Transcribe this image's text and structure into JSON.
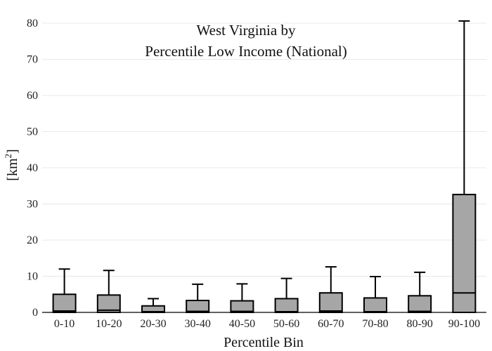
{
  "chart_data": {
    "type": "box",
    "title_lines": [
      "West Virginia  by",
      "Percentile Low Income (National)"
    ],
    "xlabel": "Percentile Bin",
    "ylabel": "[km",
    "ylabel_superscript": "2",
    "ylabel_close": "]",
    "ylim": [
      0,
      80
    ],
    "y_ticks": [
      0,
      10,
      20,
      30,
      40,
      50,
      60,
      70,
      80
    ],
    "grid": true,
    "legend": "none",
    "box_fill": "#a6a6a6",
    "box_stroke": "#000000",
    "grid_color": "#e8e8e8",
    "categories": [
      "0-10",
      "10-20",
      "20-30",
      "30-40",
      "40-50",
      "50-60",
      "60-70",
      "70-80",
      "80-90",
      "90-100"
    ],
    "boxes": [
      {
        "category": "0-10",
        "lower_whisker": 0,
        "q1": 0,
        "median": 0.4,
        "q3": 5.0,
        "upper_whisker": 12.0
      },
      {
        "category": "10-20",
        "lower_whisker": 0,
        "q1": 0,
        "median": 0.6,
        "q3": 4.8,
        "upper_whisker": 11.6
      },
      {
        "category": "20-30",
        "lower_whisker": 0,
        "q1": 0,
        "median": 0.2,
        "q3": 1.8,
        "upper_whisker": 3.8
      },
      {
        "category": "30-40",
        "lower_whisker": 0,
        "q1": 0,
        "median": 0.3,
        "q3": 3.3,
        "upper_whisker": 7.8
      },
      {
        "category": "40-50",
        "lower_whisker": 0,
        "q1": 0,
        "median": 0.3,
        "q3": 3.2,
        "upper_whisker": 7.9
      },
      {
        "category": "50-60",
        "lower_whisker": 0,
        "q1": 0,
        "median": 0.2,
        "q3": 3.8,
        "upper_whisker": 9.4
      },
      {
        "category": "60-70",
        "lower_whisker": 0,
        "q1": 0,
        "median": 0.4,
        "q3": 5.4,
        "upper_whisker": 12.6
      },
      {
        "category": "70-80",
        "lower_whisker": 0,
        "q1": 0,
        "median": 0.2,
        "q3": 4.0,
        "upper_whisker": 9.9
      },
      {
        "category": "80-90",
        "lower_whisker": 0,
        "q1": 0,
        "median": 0.3,
        "q3": 4.6,
        "upper_whisker": 11.1
      },
      {
        "category": "90-100",
        "lower_whisker": 0,
        "q1": 0,
        "median": 5.4,
        "q3": 32.6,
        "upper_whisker": 80.6
      }
    ]
  }
}
